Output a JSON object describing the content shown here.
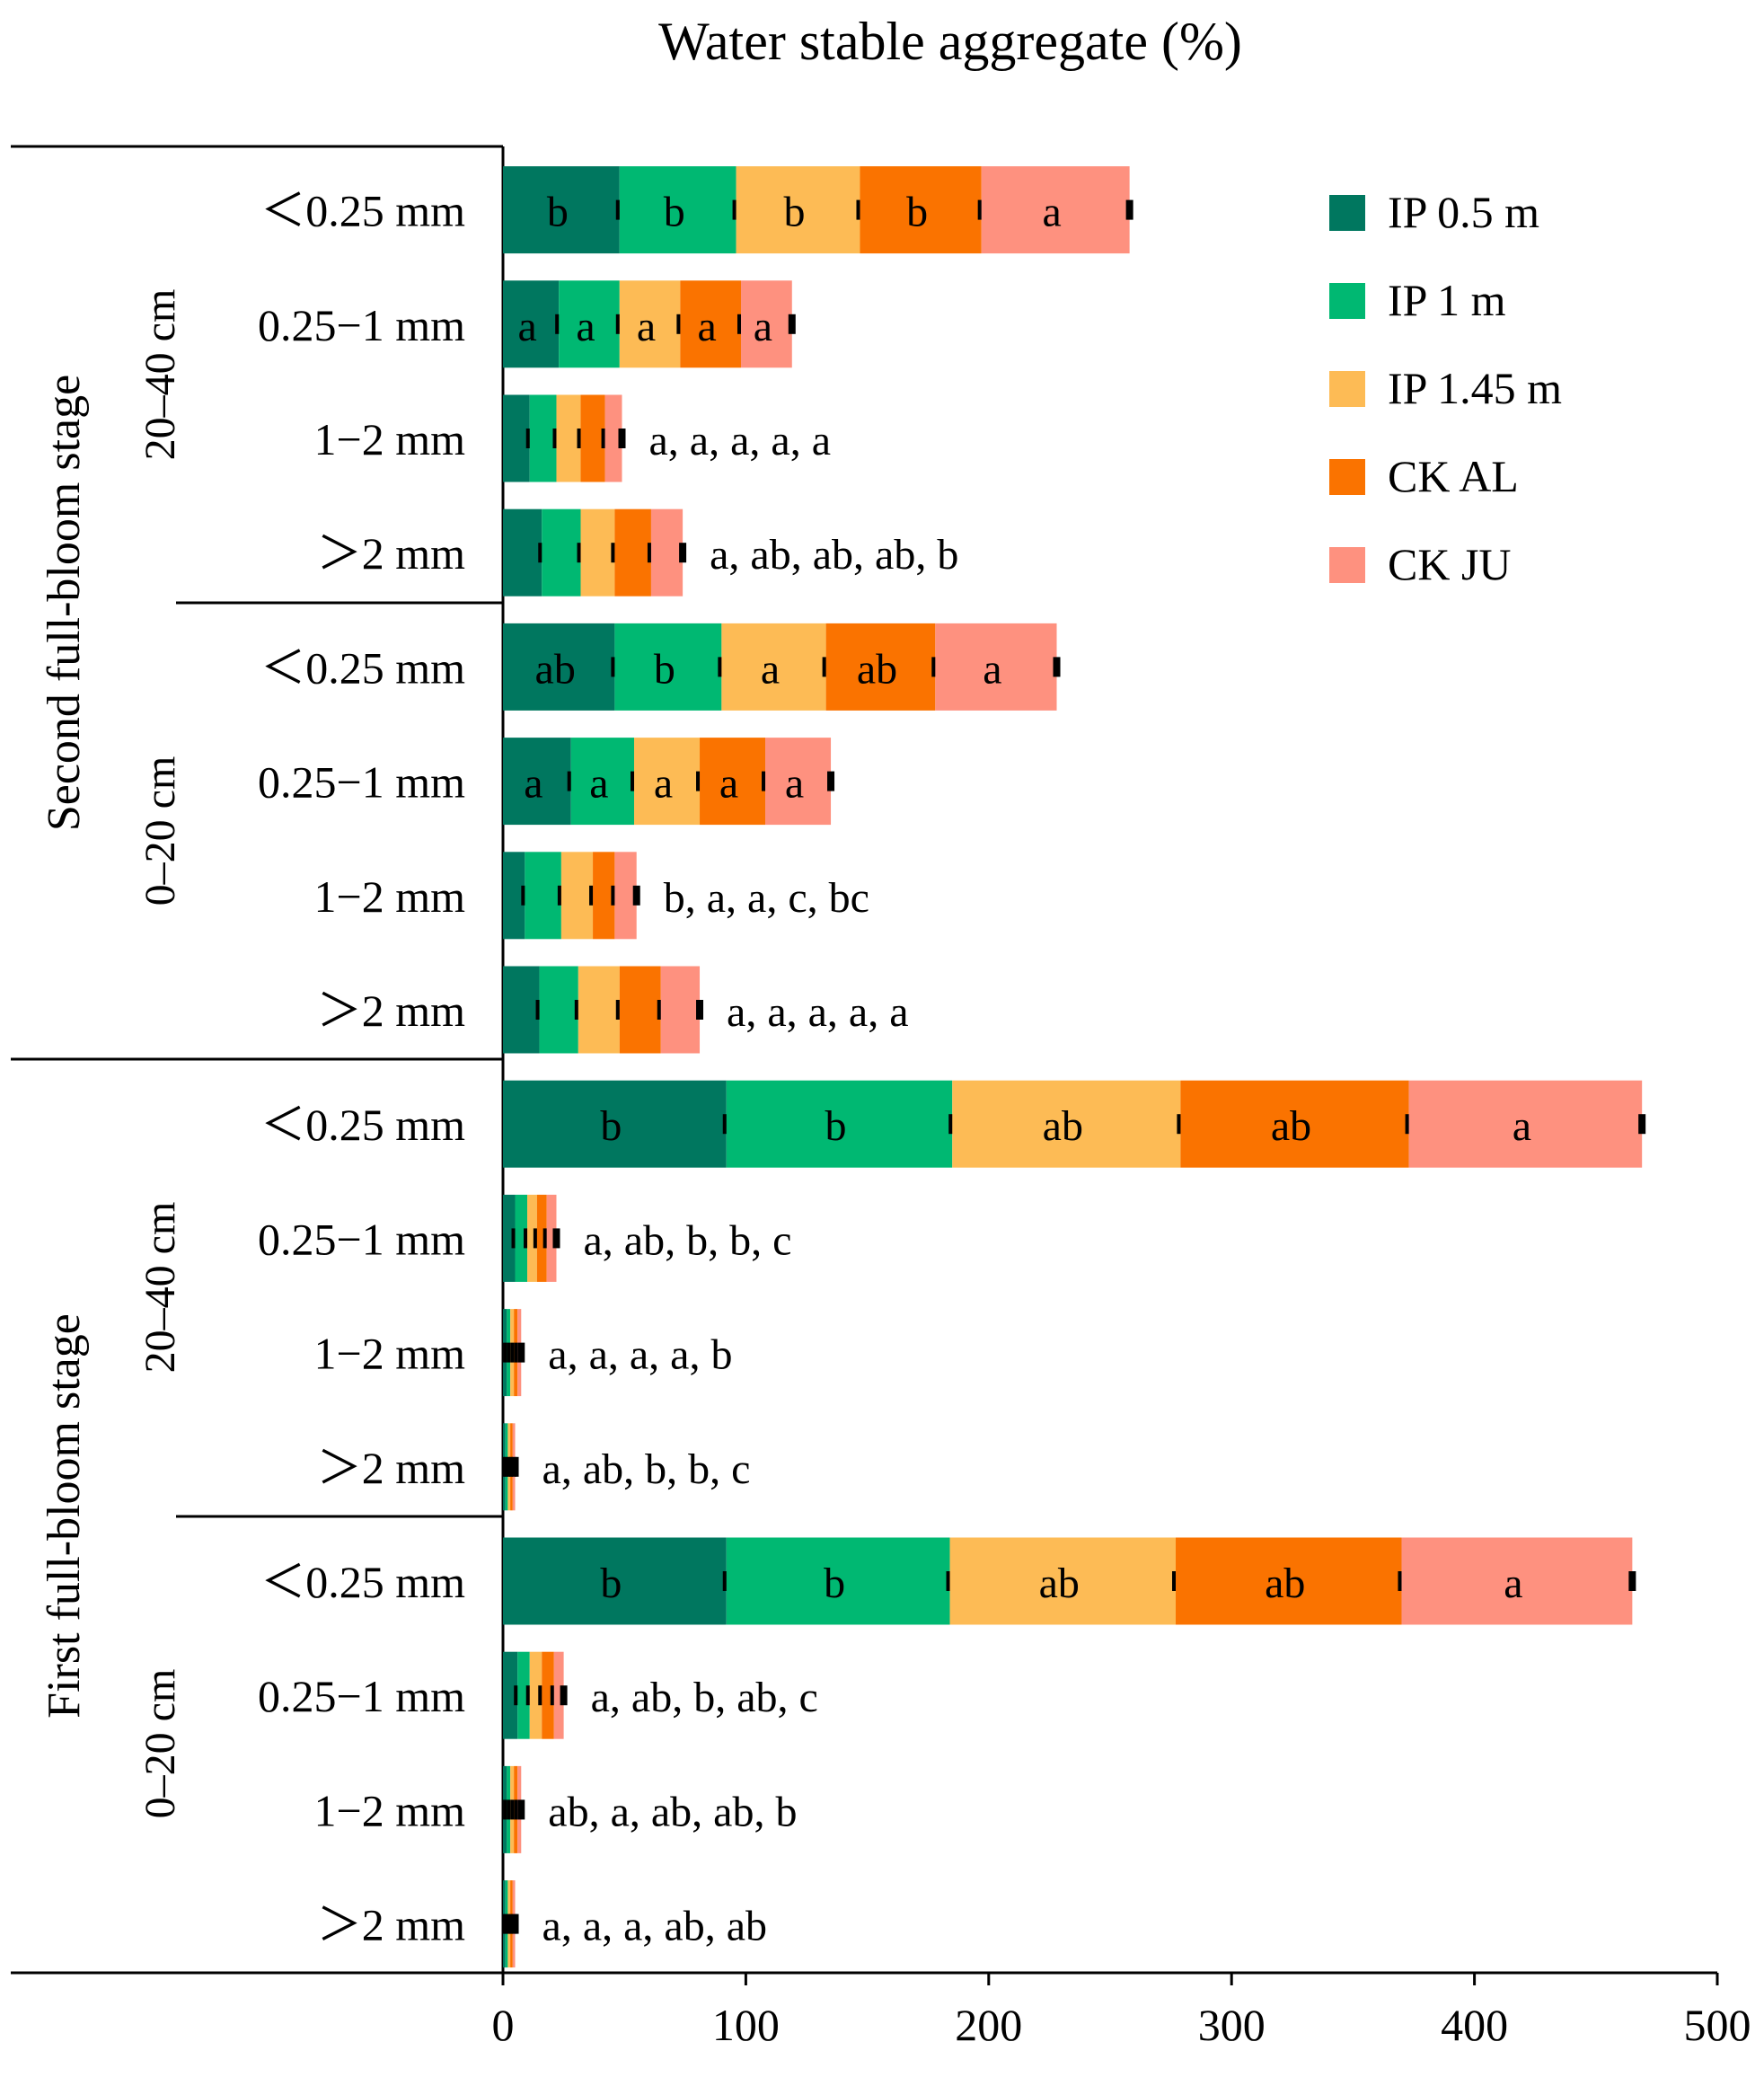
{
  "chart_data": {
    "type": "stacked-bar-horizontal",
    "title": "Water stable aggregate (%)",
    "xlim": [
      0,
      500
    ],
    "xticks": [
      0,
      100,
      200,
      300,
      400,
      500
    ],
    "legend_position": "top-right",
    "series": [
      {
        "name": "IP 0.5 m",
        "color": "#00775f"
      },
      {
        "name": "IP 1 m",
        "color": "#00b872"
      },
      {
        "name": "IP 1.45 m",
        "color": "#fdbb55"
      },
      {
        "name": "CK AL",
        "color": "#fa7300"
      },
      {
        "name": "CK JU",
        "color": "#fe917f"
      }
    ],
    "stages": [
      {
        "name": "Second full-bloom stage",
        "depths": [
          "20–40 cm",
          "0–20 cm"
        ]
      },
      {
        "name": "First full-bloom stage",
        "depths": [
          "20–40 cm",
          "0–20 cm"
        ]
      }
    ],
    "rows": [
      {
        "stage": "Second full-bloom stage",
        "depth": "20–40 cm",
        "size": "<0.25 mm",
        "values": [
          48,
          48,
          51,
          50,
          61
        ],
        "letters": [
          "b",
          "b",
          "b",
          "b",
          "a"
        ],
        "label_mode": "inside"
      },
      {
        "stage": "Second full-bloom stage",
        "depth": "20–40 cm",
        "size": "0.25−1 mm",
        "values": [
          23,
          25,
          25,
          25,
          21
        ],
        "letters": [
          "a",
          "a",
          "a",
          "a",
          "a"
        ],
        "label_mode": "inside"
      },
      {
        "stage": "Second full-bloom stage",
        "depth": "20–40 cm",
        "size": "1−2 mm",
        "values": [
          11,
          11,
          10,
          10,
          7
        ],
        "letters": [
          "a",
          "a",
          "a",
          "a",
          "a"
        ],
        "label_mode": "outside",
        "label_text": "a, a, a, a, a"
      },
      {
        "stage": "Second full-bloom stage",
        "depth": "20–40 cm",
        "size": ">2 mm",
        "values": [
          16,
          16,
          14,
          15,
          13
        ],
        "letters": [
          "a",
          "ab",
          "ab",
          "ab",
          "b"
        ],
        "label_mode": "outside",
        "label_text": "a, ab, ab, ab, b"
      },
      {
        "stage": "Second full-bloom stage",
        "depth": "0–20 cm",
        "size": "<0.25 mm",
        "values": [
          46,
          44,
          43,
          45,
          50
        ],
        "letters": [
          "ab",
          "b",
          "a",
          "ab",
          "a"
        ],
        "label_mode": "inside"
      },
      {
        "stage": "Second full-bloom stage",
        "depth": "0–20 cm",
        "size": "0.25−1 mm",
        "values": [
          28,
          26,
          27,
          27,
          27
        ],
        "letters": [
          "a",
          "a",
          "a",
          "a",
          "a"
        ],
        "label_mode": "inside"
      },
      {
        "stage": "Second full-bloom stage",
        "depth": "0–20 cm",
        "size": "1−2 mm",
        "values": [
          9,
          15,
          13,
          9,
          9
        ],
        "letters": [
          "b",
          "a",
          "a",
          "c",
          "bc"
        ],
        "label_mode": "outside",
        "label_text": "b, a, a, c, bc"
      },
      {
        "stage": "Second full-bloom stage",
        "depth": "0–20 cm",
        "size": ">2 mm",
        "values": [
          15,
          16,
          17,
          17,
          16
        ],
        "letters": [
          "a",
          "a",
          "a",
          "a",
          "a"
        ],
        "label_mode": "outside",
        "label_text": "a, a, a, a, a"
      },
      {
        "stage": "First full-bloom stage",
        "depth": "20–40 cm",
        "size": "<0.25 mm",
        "values": [
          92,
          93,
          94,
          94,
          96
        ],
        "letters": [
          "b",
          "b",
          "ab",
          "ab",
          "a"
        ],
        "label_mode": "inside"
      },
      {
        "stage": "First full-bloom stage",
        "depth": "20–40 cm",
        "size": "0.25−1 mm",
        "values": [
          5,
          5,
          4,
          4,
          4
        ],
        "letters": [
          "a",
          "ab",
          "b",
          "b",
          "c"
        ],
        "label_mode": "outside",
        "label_text": "a, ab, b, b, c"
      },
      {
        "stage": "First full-bloom stage",
        "depth": "20–40 cm",
        "size": "1−2 mm",
        "values": [
          1.5,
          1.5,
          1.5,
          1.5,
          1.5
        ],
        "letters": [
          "a",
          "a",
          "a",
          "a",
          "b"
        ],
        "label_mode": "outside",
        "label_text": "a, a, a, a, b"
      },
      {
        "stage": "First full-bloom stage",
        "depth": "20–40 cm",
        "size": ">2 mm",
        "values": [
          1,
          1,
          1,
          1,
          1
        ],
        "letters": [
          "a",
          "ab",
          "b",
          "b",
          "c"
        ],
        "label_mode": "outside",
        "label_text": "a, ab, b, b, c"
      },
      {
        "stage": "First full-bloom stage",
        "depth": "0–20 cm",
        "size": "<0.25 mm",
        "values": [
          92,
          92,
          93,
          93,
          95
        ],
        "letters": [
          "b",
          "b",
          "ab",
          "ab",
          "a"
        ],
        "label_mode": "inside"
      },
      {
        "stage": "First full-bloom stage",
        "depth": "0–20 cm",
        "size": "0.25−1 mm",
        "values": [
          6,
          5,
          5,
          5,
          4
        ],
        "letters": [
          "a",
          "ab",
          "b",
          "ab",
          "c"
        ],
        "label_mode": "outside",
        "label_text": "a, ab, b, ab, c"
      },
      {
        "stage": "First full-bloom stage",
        "depth": "0–20 cm",
        "size": "1−2 mm",
        "values": [
          1.5,
          1.5,
          1.5,
          1.5,
          1.5
        ],
        "letters": [
          "ab",
          "a",
          "ab",
          "ab",
          "b"
        ],
        "label_mode": "outside",
        "label_text": "ab, a, ab, ab, b"
      },
      {
        "stage": "First full-bloom stage",
        "depth": "0–20 cm",
        "size": ">2 mm",
        "values": [
          1,
          1,
          1,
          1,
          1
        ],
        "letters": [
          "a",
          "a",
          "a",
          "ab",
          "ab"
        ],
        "label_mode": "outside",
        "label_text": "a, a, a, ab, ab"
      }
    ]
  }
}
